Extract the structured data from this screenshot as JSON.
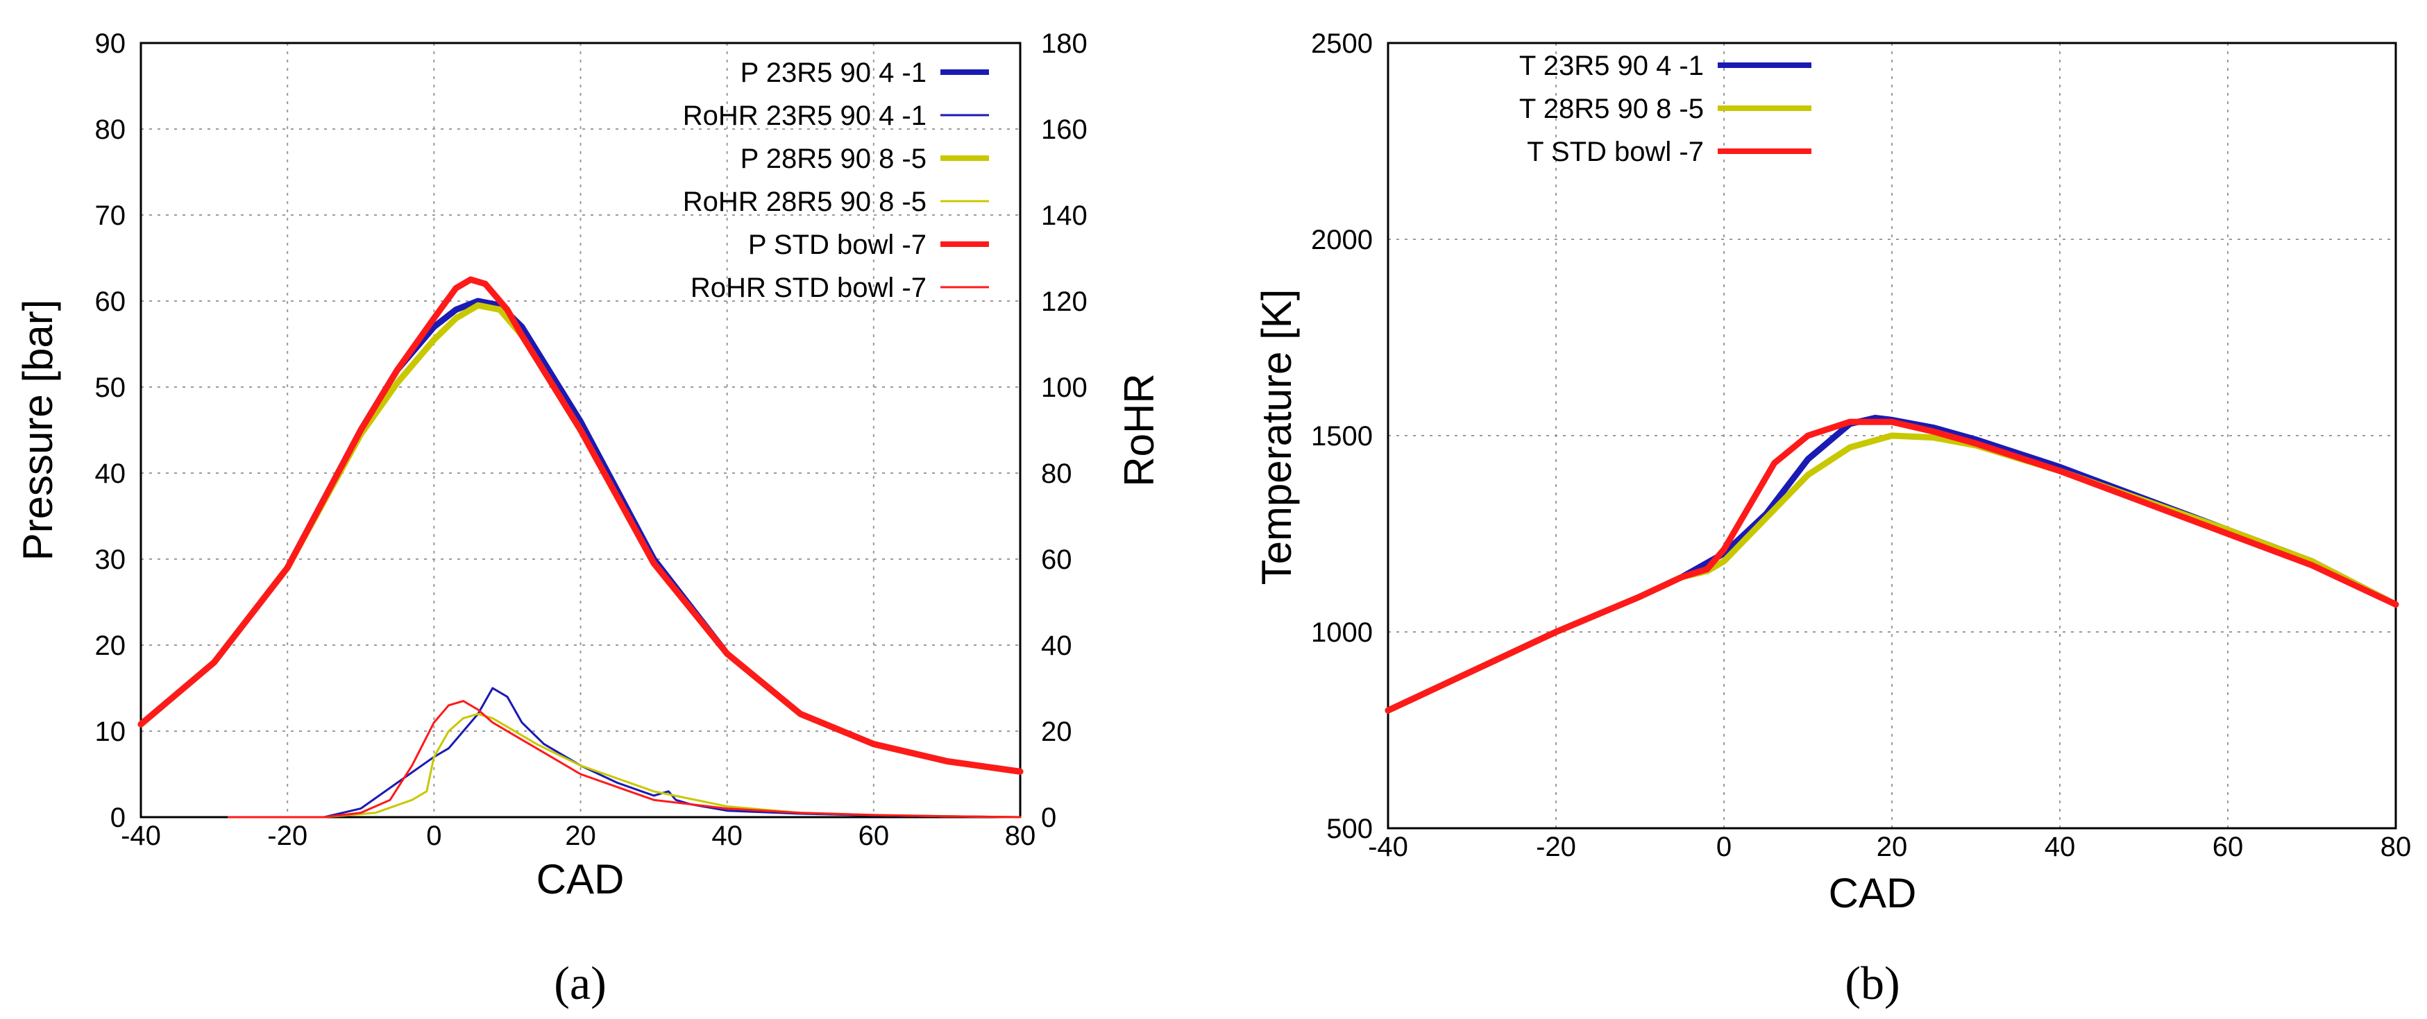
{
  "colors": {
    "blue": "#1a1ab4",
    "yellow": "#c8c800",
    "red": "#ff1a1a"
  },
  "chart_data": [
    {
      "type": "line",
      "caption": "(a)",
      "xlabel": "CAD",
      "ylabel": "Pressure  [bar]",
      "y2label": "RoHR",
      "xlim": [
        -40,
        80
      ],
      "ylim": [
        0,
        90
      ],
      "y2lim": [
        0,
        180
      ],
      "xticks": [
        -40,
        -20,
        0,
        20,
        40,
        60,
        80
      ],
      "yticks": [
        0,
        10,
        20,
        30,
        40,
        50,
        60,
        70,
        80,
        90
      ],
      "y2ticks": [
        0,
        20,
        40,
        60,
        80,
        100,
        120,
        140,
        160,
        180
      ],
      "grid": true,
      "legend_position": "top-right",
      "series": [
        {
          "name": "P 23R5 90 4 -1",
          "axis": "left",
          "color": "#1a1ab4",
          "width": "thick",
          "x": [
            -40,
            -30,
            -20,
            -10,
            -5,
            0,
            3,
            6,
            9,
            12,
            20,
            30,
            40,
            50,
            60,
            70,
            80
          ],
          "y": [
            10.8,
            18,
            29,
            45,
            52,
            57,
            59,
            60,
            59.5,
            57,
            46,
            30,
            19,
            12,
            8.5,
            6.5,
            5.3
          ]
        },
        {
          "name": "RoHR 23R5 90 4 -1",
          "axis": "right",
          "color": "#1a1ab4",
          "width": "thin",
          "x": [
            -28,
            -15,
            -10,
            -5,
            0,
            2,
            4,
            6,
            8,
            10,
            12,
            15,
            20,
            25,
            30,
            32,
            33,
            35,
            40,
            50,
            60,
            70,
            80
          ],
          "y": [
            0,
            0,
            2,
            8,
            14,
            16,
            20,
            24,
            30,
            28,
            22,
            17,
            12,
            8,
            5,
            6,
            4,
            3,
            1.5,
            0.8,
            0.4,
            0.2,
            0
          ]
        },
        {
          "name": "P 28R5 90 8 -5",
          "axis": "left",
          "color": "#c8c800",
          "width": "thick",
          "x": [
            -40,
            -30,
            -20,
            -10,
            -5,
            0,
            3,
            6,
            9,
            12,
            20,
            30,
            40,
            50,
            60,
            70,
            80
          ],
          "y": [
            10.8,
            18,
            29,
            44.5,
            50.5,
            55.5,
            58,
            59.5,
            59,
            56,
            45,
            29.5,
            19,
            12,
            8.5,
            6.5,
            5.3
          ]
        },
        {
          "name": "RoHR 28R5 90 8 -5",
          "axis": "right",
          "color": "#c8c800",
          "width": "thin",
          "x": [
            -28,
            -15,
            -8,
            -3,
            -1,
            0,
            2,
            4,
            6,
            8,
            10,
            14,
            20,
            25,
            30,
            40,
            50,
            60,
            70,
            80
          ],
          "y": [
            0,
            0,
            1,
            4,
            6,
            14,
            20,
            23,
            24,
            23,
            21,
            17,
            12,
            9,
            6,
            2.5,
            1,
            0.5,
            0.2,
            0
          ]
        },
        {
          "name": "P STD bowl -7",
          "axis": "left",
          "color": "#ff1a1a",
          "width": "thick",
          "x": [
            -40,
            -30,
            -20,
            -10,
            -5,
            0,
            3,
            5,
            7,
            10,
            12,
            20,
            30,
            40,
            50,
            60,
            70,
            80
          ],
          "y": [
            10.8,
            18,
            29,
            45,
            52,
            58,
            61.5,
            62.5,
            62,
            59,
            56,
            45,
            29.5,
            19,
            12,
            8.5,
            6.5,
            5.3
          ]
        },
        {
          "name": "RoHR STD bowl -7",
          "axis": "right",
          "color": "#ff1a1a",
          "width": "thin",
          "x": [
            -28,
            -15,
            -10,
            -6,
            -3,
            0,
            2,
            4,
            6,
            8,
            12,
            16,
            20,
            25,
            30,
            40,
            50,
            60,
            70,
            80
          ],
          "y": [
            0,
            0,
            1,
            4,
            12,
            22,
            26,
            27,
            25,
            22,
            18,
            14,
            10,
            7,
            4,
            2,
            1,
            0.5,
            0.2,
            0
          ]
        }
      ]
    },
    {
      "type": "line",
      "caption": "(b)",
      "xlabel": "CAD",
      "ylabel": "Temperature  [K]",
      "xlim": [
        -40,
        80
      ],
      "ylim": [
        500,
        2500
      ],
      "xticks": [
        -40,
        -20,
        0,
        20,
        40,
        60,
        80
      ],
      "yticks": [
        500,
        1000,
        1500,
        2000,
        2500
      ],
      "grid": true,
      "legend_position": "top-left",
      "series": [
        {
          "name": "T 23R5 90 4 -1",
          "color": "#1a1ab4",
          "x": [
            -40,
            -30,
            -20,
            -10,
            -5,
            0,
            5,
            10,
            15,
            18,
            20,
            25,
            30,
            40,
            50,
            60,
            70,
            80
          ],
          "y": [
            800,
            900,
            1000,
            1090,
            1140,
            1200,
            1300,
            1440,
            1530,
            1545,
            1540,
            1520,
            1490,
            1420,
            1340,
            1260,
            1180,
            1070
          ]
        },
        {
          "name": "T 28R5 90 8 -5",
          "color": "#c8c800",
          "x": [
            -40,
            -30,
            -20,
            -10,
            -5,
            -2,
            0,
            5,
            10,
            15,
            20,
            25,
            30,
            40,
            50,
            60,
            70,
            80
          ],
          "y": [
            800,
            900,
            1000,
            1090,
            1140,
            1155,
            1180,
            1290,
            1400,
            1470,
            1500,
            1495,
            1475,
            1410,
            1335,
            1260,
            1180,
            1070
          ]
        },
        {
          "name": "T STD bowl -7",
          "color": "#ff1a1a",
          "x": [
            -40,
            -30,
            -20,
            -10,
            -5,
            -2,
            0,
            3,
            6,
            10,
            15,
            20,
            25,
            30,
            40,
            50,
            60,
            70,
            80
          ],
          "y": [
            800,
            900,
            1000,
            1090,
            1140,
            1160,
            1210,
            1320,
            1430,
            1500,
            1535,
            1535,
            1510,
            1480,
            1410,
            1330,
            1250,
            1170,
            1070
          ]
        }
      ]
    }
  ]
}
